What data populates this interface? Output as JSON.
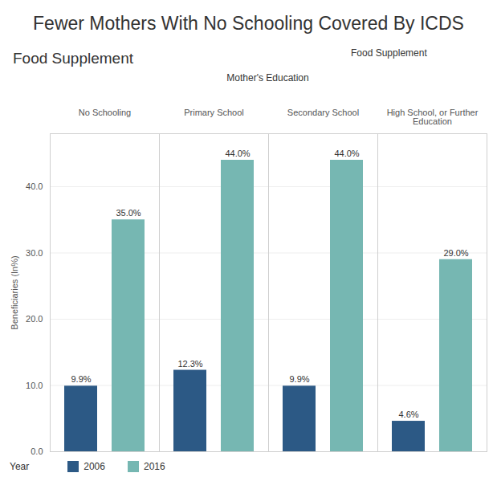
{
  "chart_data": {
    "type": "bar",
    "title": "Fewer Mothers With No Schooling Covered By ICDS",
    "subtitle": "Food Supplement",
    "annotations": [
      "Food Supplement"
    ],
    "x_label": "Mother's Education",
    "y_label": "Beneficiaries (In%)",
    "legend_title": "Year",
    "categories": [
      "No Schooling",
      "Primary School",
      "Secondary School",
      "High School, or Further Education"
    ],
    "series": [
      {
        "name": "2006",
        "color": "#2c5985",
        "values": [
          9.9,
          12.3,
          9.9,
          4.6
        ],
        "value_labels": [
          "9.9%",
          "12.3%",
          "9.9%",
          "4.6%"
        ]
      },
      {
        "name": "2016",
        "color": "#76b7b2",
        "values": [
          35,
          44,
          44,
          29
        ],
        "value_labels": [
          "35.0%",
          "44.0%",
          "44.0%",
          "29.0%"
        ]
      }
    ],
    "ylim": [
      0,
      48
    ],
    "yticks": [
      {
        "value": 0,
        "label": "0.0"
      },
      {
        "value": 10,
        "label": "10.0"
      },
      {
        "value": 20,
        "label": "20.0"
      },
      {
        "value": 30,
        "label": "30.0"
      },
      {
        "value": 40,
        "label": "40.0"
      }
    ],
    "grid": true,
    "data_labels": true,
    "legend": "bottom"
  }
}
